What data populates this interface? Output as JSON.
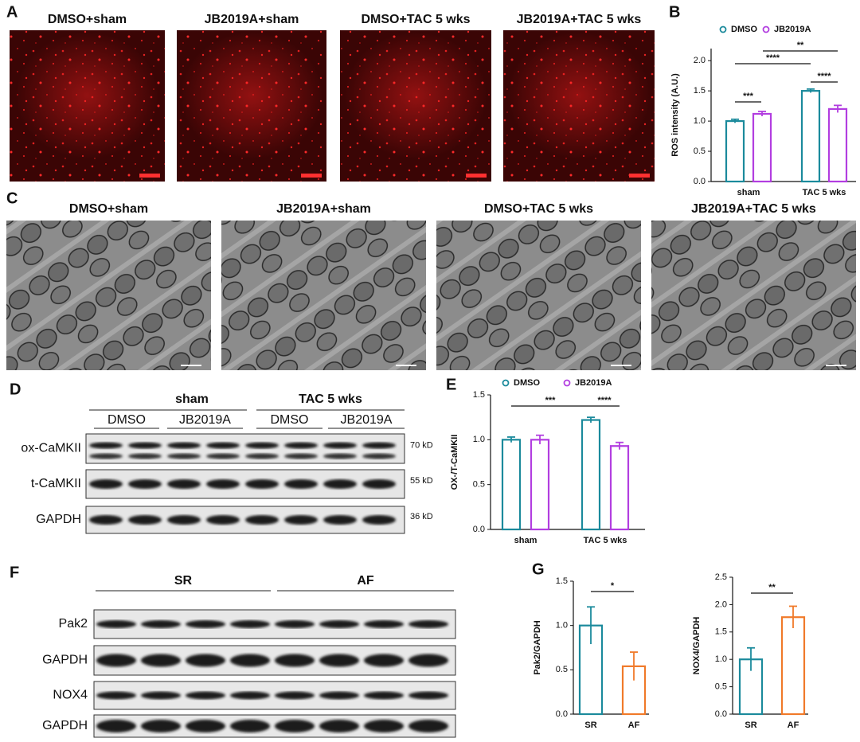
{
  "panel_labels": [
    "A",
    "B",
    "C",
    "D",
    "E",
    "F",
    "G"
  ],
  "fluorescence_images": [
    "DMSO+sham",
    "JB2019A+sham",
    "DMSO+TAC 5 wks",
    "JB2019A+TAC 5 wks"
  ],
  "em_images": [
    "DMSO+sham",
    "JB2019A+sham",
    "DMSO+TAC 5 wks",
    "JB2019A+TAC 5 wks"
  ],
  "blot_d": {
    "groups": [
      "sham",
      "TAC 5 wks"
    ],
    "lanes": [
      "DMSO",
      "JB2019A",
      "DMSO",
      "JB2019A"
    ],
    "rows": [
      {
        "label": "ox-CaMKII",
        "size": "70 kD"
      },
      {
        "label": "t-CaMKII",
        "size": "55 kD"
      },
      {
        "label": "GAPDH",
        "size": "36 kD"
      }
    ]
  },
  "blot_f": {
    "groups": [
      "SR",
      "AF"
    ],
    "rows": [
      "Pak2",
      "GAPDH",
      "NOX4",
      "GAPDH"
    ]
  },
  "chart_data": [
    {
      "type": "bar",
      "y_label": "ROS intensity (A.U.)",
      "categories": [
        "sham",
        "TAC 5 wks"
      ],
      "series": [
        {
          "name": "DMSO",
          "color": "#1b8a9c",
          "values": [
            1.0,
            1.5
          ],
          "errors": [
            0.03,
            0.03
          ]
        },
        {
          "name": "JB2019A",
          "color": "#b23ee0",
          "values": [
            1.12,
            1.2
          ],
          "errors": [
            0.04,
            0.06
          ]
        }
      ],
      "ylim": [
        0,
        2.2
      ],
      "yticks": [
        {
          "value": 0,
          "label": "0.0"
        },
        {
          "value": 0.5,
          "label": "0.5"
        },
        {
          "value": 1,
          "label": "1.0"
        },
        {
          "value": 1.5,
          "label": "1.5"
        },
        {
          "value": 2,
          "label": "2.0"
        }
      ],
      "annotations": [
        "***",
        "****",
        "**",
        "****"
      ]
    },
    {
      "type": "bar",
      "y_label": "OX-/T-CaMKII",
      "categories": [
        "sham",
        "TAC 5 wks"
      ],
      "series": [
        {
          "name": "DMSO",
          "color": "#1b8a9c",
          "values": [
            1.0,
            1.22
          ],
          "errors": [
            0.03,
            0.03
          ]
        },
        {
          "name": "JB2019A",
          "color": "#b23ee0",
          "values": [
            1.0,
            0.93
          ],
          "errors": [
            0.05,
            0.04
          ]
        }
      ],
      "ylim": [
        0,
        1.5
      ],
      "yticks": [
        {
          "value": 0,
          "label": "0.0"
        },
        {
          "value": 0.5,
          "label": "0.5"
        },
        {
          "value": 1,
          "label": "1.0"
        },
        {
          "value": 1.5,
          "label": "1.5"
        }
      ],
      "annotations": [
        "***",
        "****"
      ]
    },
    {
      "type": "bar",
      "y_label": "Pak2/GAPDH",
      "categories": [
        "SR",
        "AF"
      ],
      "values": [
        1.0,
        0.54
      ],
      "errors": [
        0.21,
        0.16
      ],
      "colors": [
        "#1b8a9c",
        "#f07a2a"
      ],
      "ylim": [
        0,
        1.5
      ],
      "yticks": [
        {
          "value": 0,
          "label": "0.0"
        },
        {
          "value": 0.5,
          "label": "0.5"
        },
        {
          "value": 1,
          "label": "1.0"
        },
        {
          "value": 1.5,
          "label": "1.5"
        }
      ],
      "annotations": [
        "*"
      ]
    },
    {
      "type": "bar",
      "y_label": "NOX4/GAPDH",
      "categories": [
        "SR",
        "AF"
      ],
      "values": [
        1.0,
        1.77
      ],
      "errors": [
        0.21,
        0.2
      ],
      "colors": [
        "#1b8a9c",
        "#f07a2a"
      ],
      "ylim": [
        0,
        2.5
      ],
      "yticks": [
        {
          "value": 0,
          "label": "0.0"
        },
        {
          "value": 0.5,
          "label": "0.5"
        },
        {
          "value": 1,
          "label": "1.0"
        },
        {
          "value": 1.5,
          "label": "1.5"
        },
        {
          "value": 2,
          "label": "2.0"
        },
        {
          "value": 2.5,
          "label": "2.5"
        }
      ],
      "annotations": [
        "**"
      ]
    }
  ]
}
